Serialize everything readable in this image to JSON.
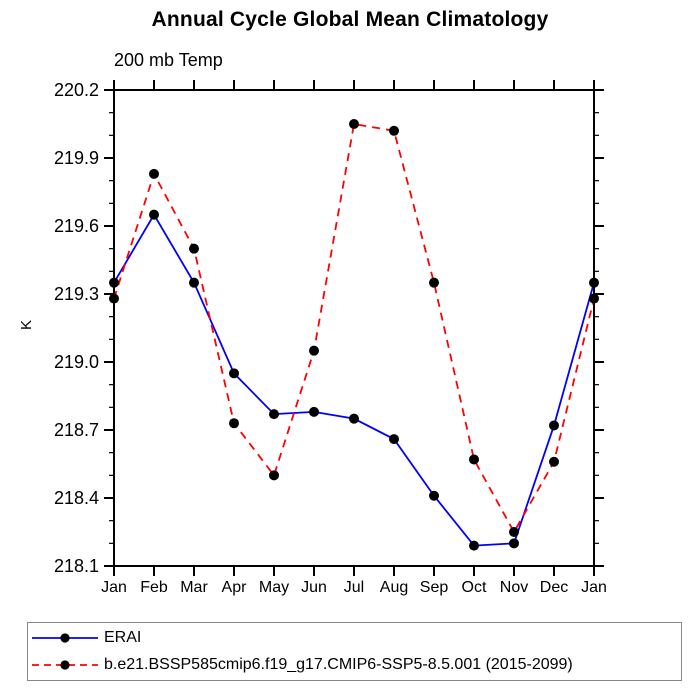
{
  "title": "Annual Cycle Global Mean Climatology",
  "subtitle": "200 mb Temp",
  "ylabel": "K",
  "chart_data": {
    "type": "line",
    "categories": [
      "Jan",
      "Feb",
      "Mar",
      "Apr",
      "May",
      "Jun",
      "Jul",
      "Aug",
      "Sep",
      "Oct",
      "Nov",
      "Dec",
      "Jan"
    ],
    "ylim": [
      218.1,
      220.2
    ],
    "yticks": [
      "218.1",
      "218.4",
      "218.7",
      "219.0",
      "219.3",
      "219.6",
      "219.9",
      "220.2"
    ],
    "ytick_minor_step": 0.1,
    "grid": false,
    "legend_position": "bottom-left",
    "axis_color": "#000000",
    "marker_color": "#000000",
    "series": [
      {
        "name": "ERAI",
        "color": "#0000ff",
        "line_style": "solid",
        "marker": "filled-circle",
        "values": [
          219.35,
          219.65,
          219.35,
          218.95,
          218.77,
          218.78,
          218.75,
          218.66,
          218.41,
          218.19,
          218.2,
          218.72,
          219.35
        ]
      },
      {
        "name": "b.e21.BSSP585cmip6.f19_g17.CMIP6-SSP5-8.5.001 (2015-2099)",
        "color": "#ff0000",
        "line_style": "dashed",
        "marker": "filled-circle",
        "values": [
          219.28,
          219.83,
          219.5,
          218.73,
          218.5,
          219.05,
          220.05,
          220.02,
          219.35,
          218.57,
          218.25,
          218.56,
          219.28
        ]
      }
    ]
  }
}
